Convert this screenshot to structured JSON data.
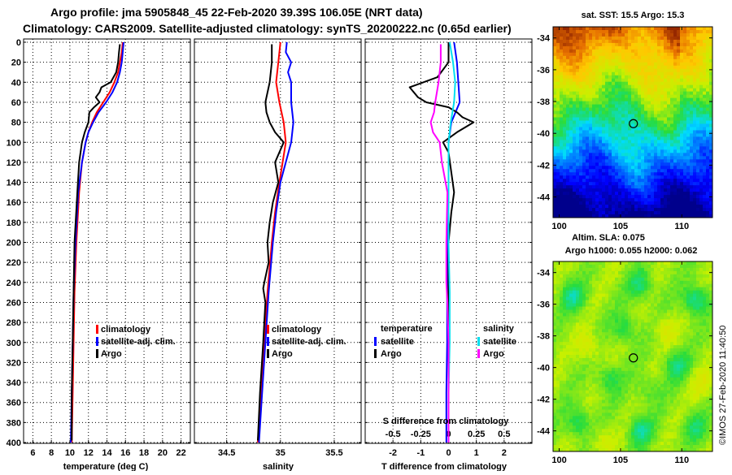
{
  "header": {
    "title_line1": "Argo profile: jma 5905848_45 22-Feb-2020 39.39S 106.05E (NRT data)",
    "title_line2": "Climatology: CARS2009. Satellite-adjusted climatology: synTS_20200222.nc (0.65d earlier)"
  },
  "watermark": "©IMOS 27-Feb-2020 11:40:50",
  "colors": {
    "climatology": "#ff0000",
    "satellite": "#0000ff",
    "argo": "#000000",
    "sal_satellite": "#00e0f0",
    "sal_argo": "#ff00ff"
  },
  "chart_data": [
    {
      "type": "line",
      "title": "",
      "xlabel": "temperature (deg C)",
      "ylabel": "",
      "xlim": [
        5,
        23
      ],
      "ylim": [
        400,
        0
      ],
      "x_ticks": [
        "6",
        "8",
        "10",
        "12",
        "14",
        "16",
        "18",
        "20",
        "22"
      ],
      "x_tick_values": [
        6,
        8,
        10,
        12,
        14,
        16,
        18,
        20,
        22
      ],
      "y_ticks": [
        "0",
        "20",
        "40",
        "60",
        "80",
        "100",
        "120",
        "140",
        "160",
        "180",
        "200",
        "220",
        "240",
        "260",
        "280",
        "300",
        "320",
        "340",
        "360",
        "380",
        "400"
      ],
      "y_tick_values": [
        0,
        20,
        40,
        60,
        80,
        100,
        120,
        140,
        160,
        180,
        200,
        220,
        240,
        260,
        280,
        300,
        320,
        340,
        360,
        380,
        400
      ],
      "legend": [
        "climatology",
        "satellite-adj. clim.",
        "Argo"
      ],
      "legend_position": "lower-right",
      "series": [
        {
          "name": "climatology",
          "color": "#ff0000",
          "depth": [
            0,
            10,
            20,
            30,
            40,
            50,
            60,
            70,
            80,
            90,
            100,
            120,
            150,
            200,
            250,
            300,
            350,
            400
          ],
          "values": [
            15.7,
            15.6,
            15.4,
            15.2,
            14.8,
            14.3,
            13.6,
            12.9,
            12.4,
            12.0,
            11.7,
            11.3,
            11.0,
            10.7,
            10.5,
            10.4,
            10.3,
            10.2
          ]
        },
        {
          "name": "satellite-adj. clim.",
          "color": "#0000ff",
          "depth": [
            0,
            10,
            20,
            30,
            40,
            50,
            60,
            70,
            80,
            90,
            100,
            120,
            150,
            200,
            250,
            300,
            350,
            400
          ],
          "values": [
            15.8,
            15.7,
            15.6,
            15.4,
            15.1,
            14.6,
            13.9,
            13.1,
            12.5,
            12.0,
            11.7,
            11.3,
            10.9,
            10.6,
            10.4,
            10.3,
            10.2,
            10.1
          ]
        },
        {
          "name": "Argo",
          "color": "#000000",
          "depth": [
            2,
            10,
            20,
            30,
            40,
            45,
            50,
            55,
            60,
            65,
            70,
            80,
            90,
            100,
            120,
            150,
            200,
            250,
            300,
            350,
            398
          ],
          "values": [
            15.4,
            15.3,
            15.2,
            15.0,
            14.4,
            13.4,
            13.2,
            12.8,
            13.2,
            12.6,
            12.1,
            12.0,
            11.6,
            11.3,
            11.0,
            10.8,
            10.5,
            10.4,
            10.3,
            10.2,
            10.2
          ]
        }
      ]
    },
    {
      "type": "line",
      "title": "",
      "xlabel": "salinity",
      "ylabel": "",
      "xlim": [
        34.2,
        35.75
      ],
      "ylim": [
        400,
        0
      ],
      "x_ticks": [
        "34.5",
        "35",
        "35.5"
      ],
      "x_tick_values": [
        34.5,
        35,
        35.5
      ],
      "legend": [
        "climatology",
        "satellite-adj. clim.",
        "Argo"
      ],
      "legend_position": "lower-right",
      "series": [
        {
          "name": "climatology",
          "color": "#ff0000",
          "depth": [
            0,
            20,
            40,
            60,
            80,
            100,
            120,
            140,
            170,
            200,
            250,
            300,
            350,
            400
          ],
          "values": [
            35.0,
            34.98,
            34.96,
            34.99,
            35.03,
            35.05,
            35.02,
            34.99,
            34.95,
            34.92,
            34.88,
            34.85,
            34.82,
            34.79
          ]
        },
        {
          "name": "satellite-adj. clim.",
          "color": "#0000ff",
          "depth": [
            0,
            10,
            20,
            30,
            40,
            60,
            80,
            100,
            120,
            140,
            170,
            200,
            250,
            300,
            350,
            400
          ],
          "values": [
            35.06,
            35.05,
            35.1,
            35.07,
            35.1,
            35.1,
            35.12,
            35.1,
            35.05,
            35.0,
            34.96,
            34.93,
            34.89,
            34.86,
            34.83,
            34.8
          ]
        },
        {
          "name": "Argo",
          "color": "#000000",
          "depth": [
            2,
            20,
            40,
            55,
            60,
            70,
            80,
            90,
            100,
            120,
            140,
            160,
            180,
            200,
            220,
            240,
            246,
            260,
            300,
            350,
            398
          ],
          "values": [
            34.92,
            34.92,
            34.9,
            34.87,
            34.86,
            34.87,
            34.9,
            34.95,
            35.03,
            34.95,
            34.98,
            34.93,
            34.9,
            34.88,
            34.89,
            34.85,
            34.84,
            34.86,
            34.84,
            34.81,
            34.79
          ]
        }
      ]
    },
    {
      "type": "line",
      "title": "",
      "xlabel": "T difference from climatology",
      "xlabel_top": "S difference from climatology",
      "ylabel": "",
      "xlim": [
        -3,
        3
      ],
      "ylim": [
        400,
        0
      ],
      "x_ticks": [
        "-2",
        "-1",
        "0",
        "1",
        "2"
      ],
      "x_tick_values": [
        -2,
        -1,
        0,
        1,
        2
      ],
      "s_ticks": [
        "-0.5",
        "-0.25",
        "0",
        "0.25",
        "0.5"
      ],
      "s_tick_values": [
        -0.5,
        -0.25,
        0,
        0.25,
        0.5
      ],
      "legend_groups": [
        {
          "heading": "temperature",
          "entries": [
            {
              "label": "satellite",
              "color": "#0000ff"
            },
            {
              "label": "Argo",
              "color": "#000000"
            }
          ]
        },
        {
          "heading": "salinity",
          "entries": [
            {
              "label": "satellite",
              "color": "#00e0f0"
            },
            {
              "label": "Argo",
              "color": "#ff00ff"
            }
          ]
        }
      ],
      "series": [
        {
          "name": "temperature satellite",
          "color": "#0000ff",
          "depth": [
            0,
            20,
            40,
            60,
            80,
            100,
            150,
            200,
            250,
            300,
            350,
            400
          ],
          "values": [
            0.2,
            0.3,
            0.35,
            0.4,
            0.1,
            0.0,
            0.0,
            -0.05,
            -0.05,
            -0.05,
            -0.08,
            -0.08
          ]
        },
        {
          "name": "temperature Argo",
          "color": "#000000",
          "depth": [
            0,
            20,
            35,
            45,
            55,
            60,
            65,
            70,
            75,
            80,
            90,
            100,
            110,
            130,
            150,
            170,
            200,
            250,
            300,
            350,
            400
          ],
          "values": [
            0.0,
            0.0,
            -0.4,
            -1.4,
            -1.1,
            -0.8,
            0.0,
            0.3,
            0.5,
            0.9,
            0.3,
            -0.2,
            0.0,
            0.1,
            0.2,
            0.1,
            0.0,
            0.0,
            0.0,
            0.0,
            0.0
          ]
        },
        {
          "name": "salinity satellite",
          "color": "#00e0f0",
          "depth": [
            0,
            20,
            40,
            60,
            80,
            100,
            150,
            200,
            250,
            300,
            350,
            400
          ],
          "values": [
            0.01,
            0.04,
            0.06,
            0.05,
            0.02,
            0.0,
            0.0,
            0.0,
            0.01,
            0.01,
            0.0,
            0.0
          ]
        },
        {
          "name": "salinity Argo",
          "color": "#ff00ff",
          "depth": [
            2,
            20,
            40,
            60,
            70,
            80,
            90,
            100,
            120,
            150,
            200,
            240,
            260,
            300,
            350,
            400
          ],
          "values": [
            -0.07,
            -0.07,
            -0.09,
            -0.12,
            -0.13,
            -0.16,
            -0.14,
            -0.08,
            -0.06,
            -0.01,
            -0.02,
            -0.02,
            -0.01,
            0.0,
            0.0,
            0.0
          ]
        }
      ]
    },
    {
      "type": "heatmap",
      "title": "sat. SST: 15.5 Argo: 15.3",
      "xlim": [
        99.5,
        112.5
      ],
      "ylim": [
        -45.3,
        -33.3
      ],
      "x_ticks": [
        "100",
        "105",
        "110"
      ],
      "x_tick_values": [
        100,
        105,
        110
      ],
      "y_ticks": [
        "-34",
        "-36",
        "-38",
        "-40",
        "-42",
        "-44"
      ],
      "y_tick_values": [
        -34,
        -36,
        -38,
        -40,
        -42,
        -44
      ],
      "marker": {
        "lon": 106.05,
        "lat": -39.39
      }
    },
    {
      "type": "heatmap",
      "title_line1": "Altim. SLA: 0.075",
      "title_line2": "Argo h1000: 0.055 h2000: 0.062",
      "xlim": [
        99.5,
        112.5
      ],
      "ylim": [
        -45.3,
        -33.3
      ],
      "x_ticks": [
        "100",
        "105",
        "110"
      ],
      "x_tick_values": [
        100,
        105,
        110
      ],
      "y_ticks": [
        "-34",
        "-36",
        "-38",
        "-40",
        "-42",
        "-44"
      ],
      "y_tick_values": [
        -34,
        -36,
        -38,
        -40,
        -42,
        -44
      ],
      "marker": {
        "lon": 106.05,
        "lat": -39.39
      }
    }
  ]
}
